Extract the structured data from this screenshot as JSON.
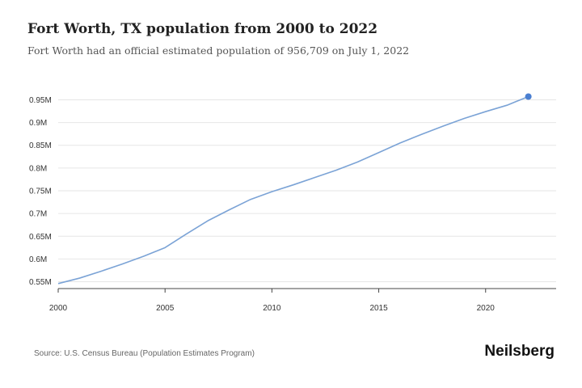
{
  "header": {
    "title": "Fort Worth, TX population from 2000 to 2022",
    "subtitle": "Fort Worth had an official estimated population of 956,709 on July 1, 2022"
  },
  "footer": {
    "source": "Source: U.S. Census Bureau (Population Estimates Program)",
    "brand": "Neilsberg"
  },
  "colors": {
    "line": "#7ba3d6",
    "marker": "#4a7fd1",
    "grid": "#e6e6e6",
    "axis": "#444444"
  },
  "chart_data": {
    "type": "line",
    "title": "Fort Worth, TX population from 2000 to 2022",
    "xlabel": "",
    "ylabel": "",
    "xlim": [
      2000,
      2023.3
    ],
    "ylim": [
      0.535,
      0.965
    ],
    "x_ticks": [
      2000,
      2005,
      2010,
      2015,
      2020
    ],
    "x_tick_labels": [
      "2000",
      "2005",
      "2010",
      "2015",
      "2020"
    ],
    "y_ticks": [
      0.55,
      0.6,
      0.65,
      0.7,
      0.75,
      0.8,
      0.85,
      0.9,
      0.95
    ],
    "y_tick_labels": [
      "0.55M",
      "0.6M",
      "0.65M",
      "0.7M",
      "0.75M",
      "0.8M",
      "0.85M",
      "0.9M",
      "0.95M"
    ],
    "grid": "horizontal",
    "series": [
      {
        "x": [
          2000,
          2001,
          2002,
          2003,
          2004,
          2005,
          2006,
          2007,
          2008,
          2009,
          2010,
          2011,
          2012,
          2013,
          2014,
          2015,
          2016,
          2017,
          2018,
          2019,
          2020,
          2021,
          2022
        ],
        "values": [
          0.546,
          0.558,
          0.573,
          0.589,
          0.606,
          0.625,
          0.655,
          0.684,
          0.708,
          0.731,
          0.748,
          0.763,
          0.779,
          0.795,
          0.813,
          0.834,
          0.855,
          0.874,
          0.892,
          0.909,
          0.924,
          0.938,
          0.957
        ]
      }
    ],
    "highlight_last_point": true
  }
}
